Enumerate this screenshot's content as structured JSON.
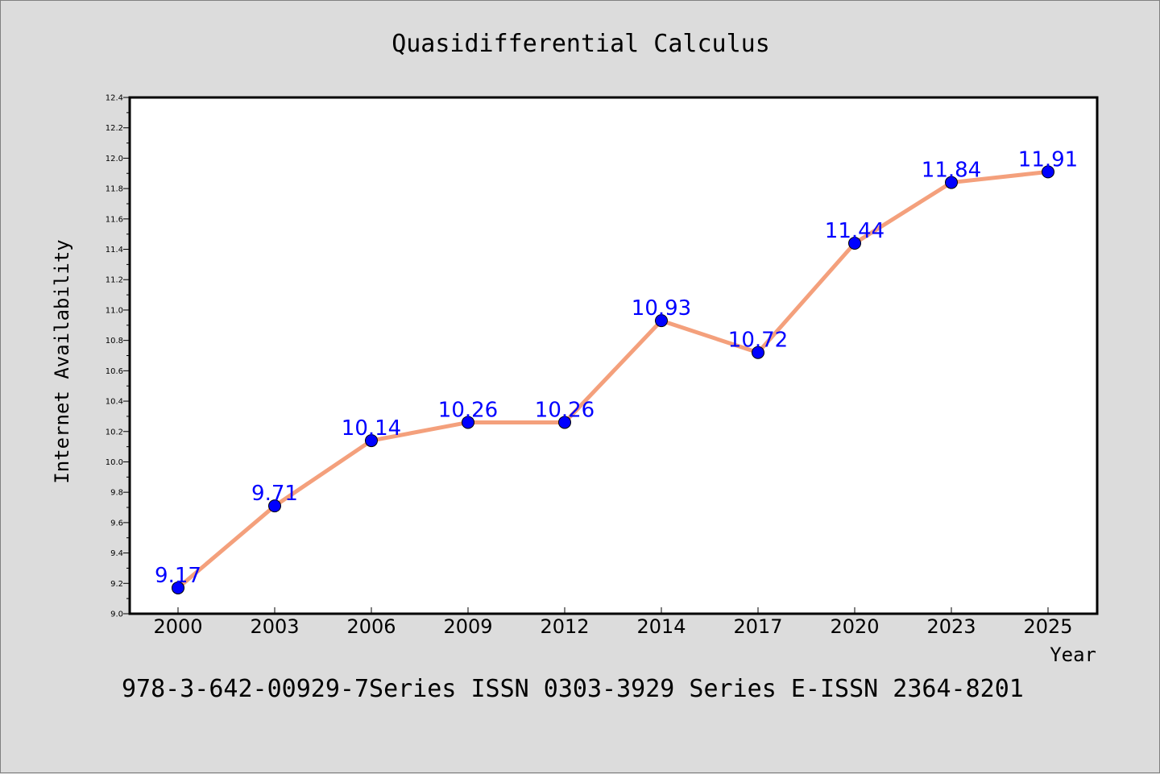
{
  "chart_data": {
    "type": "line",
    "title": "Quasidifferential Calculus",
    "xlabel": "Year",
    "ylabel": "Internet Availability",
    "categories": [
      "2000",
      "2003",
      "2006",
      "2009",
      "2012",
      "2014",
      "2017",
      "2020",
      "2023",
      "2025"
    ],
    "series": [
      {
        "values": [
          9.17,
          9.71,
          10.14,
          10.26,
          10.26,
          10.93,
          10.72,
          11.44,
          11.84,
          11.91
        ],
        "line_color": "#f4a07c",
        "marker_color": "#0000ff"
      }
    ],
    "data_labels": [
      "9.17",
      "9.71",
      "10.14",
      "10.26",
      "10.26",
      "10.93",
      "10.72",
      "11.44",
      "11.84",
      "11.91"
    ],
    "ylim": [
      9.0,
      12.4
    ],
    "yticks": [
      "9.0",
      "9.2",
      "9.4",
      "9.6",
      "9.8",
      "10.0",
      "10.2",
      "10.4",
      "10.6",
      "10.8",
      "11.0",
      "11.2",
      "11.4",
      "11.6",
      "11.8",
      "12.0",
      "12.2",
      "12.4"
    ],
    "grid": false,
    "legend": "none"
  },
  "footer": "978-3-642-00929-7Series ISSN 0303-3929 Series E-ISSN 2364-8201"
}
